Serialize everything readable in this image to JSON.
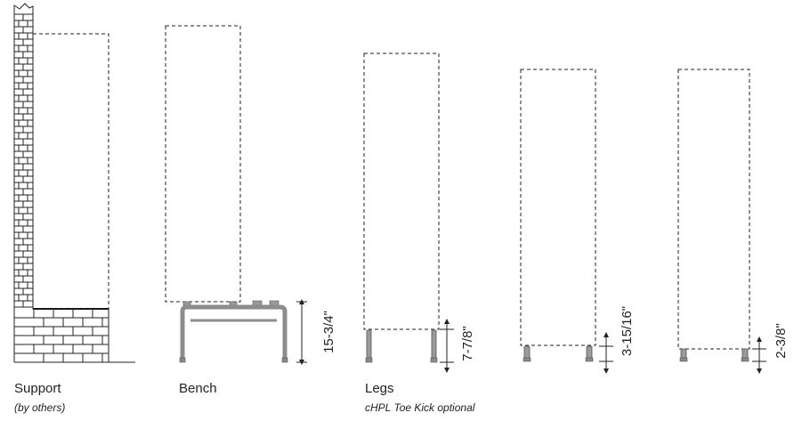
{
  "labels": {
    "support": "Support",
    "support_note": "(by others)",
    "bench": "Bench",
    "legs": "Legs",
    "legs_note": "cHPL Toe Kick optional"
  },
  "dimensions": {
    "bench_height": "15-3/4\"",
    "legs_tall": "7-7/8\"",
    "legs_medium": "3-15/16\"",
    "legs_short": "2-3/8\""
  }
}
